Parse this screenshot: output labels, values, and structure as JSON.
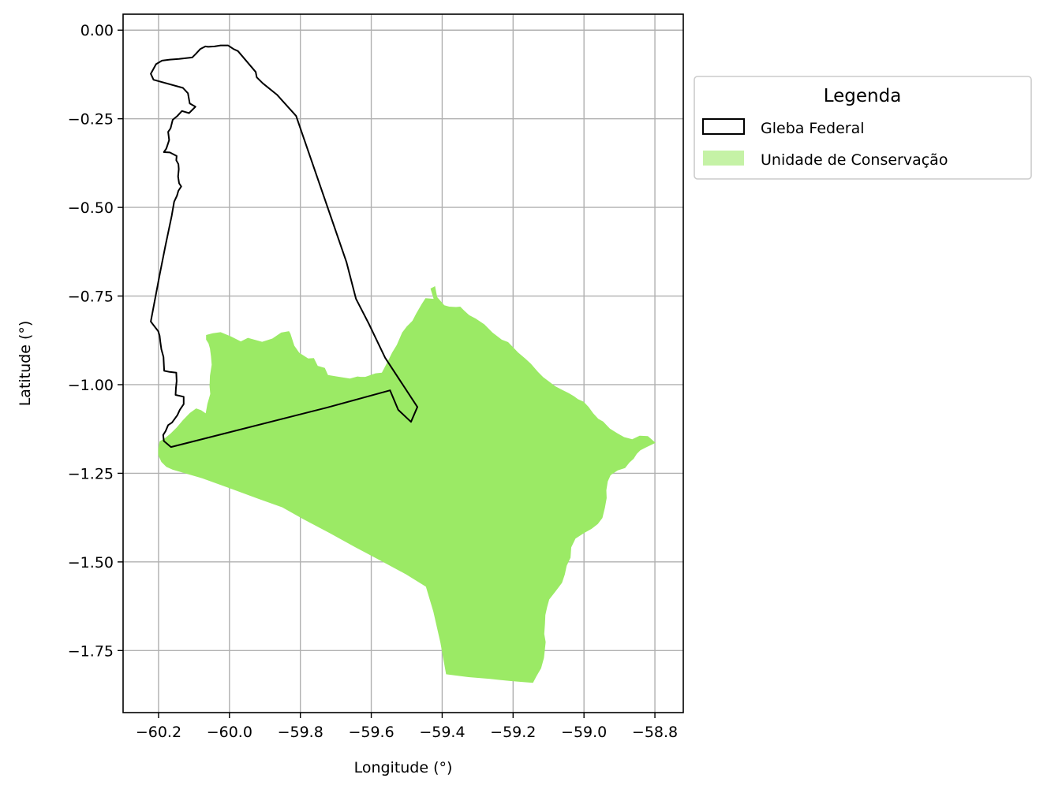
{
  "chart_data": {
    "type": "map",
    "xlabel": "Longitude (°)",
    "ylabel": "Latitude (°)",
    "xlim": [
      -60.3,
      -58.72
    ],
    "ylim": [
      -1.925,
      0.045
    ],
    "grid": true,
    "x_ticks": [
      -60.2,
      -60.0,
      -59.8,
      -59.6,
      -59.4,
      -59.2,
      -59.0,
      -58.8
    ],
    "x_tick_labels": [
      "−60.2",
      "−60.0",
      "−59.8",
      "−59.6",
      "−59.4",
      "−59.2",
      "−59.0",
      "−58.8"
    ],
    "y_ticks": [
      0.0,
      -0.25,
      -0.5,
      -0.75,
      -1.0,
      -1.25,
      -1.5,
      -1.75
    ],
    "y_tick_labels": [
      "0.00",
      "−0.25",
      "−0.50",
      "−0.75",
      "−1.00",
      "−1.25",
      "−1.50",
      "−1.75"
    ],
    "legend": {
      "title": "Legenda",
      "placement": "outside-right-top",
      "entries": [
        {
          "label": "Gleba Federal",
          "style": "outline",
          "color": "#000000"
        },
        {
          "label": "Unidade de Conservação",
          "style": "fill",
          "color": "#c5f2a6"
        }
      ]
    },
    "series": [
      {
        "name": "Gleba Federal",
        "style": "outline",
        "stroke": "#000000",
        "coordinates": [
          [
            -60.222,
            -0.123
          ],
          [
            -60.207,
            -0.096
          ],
          [
            -60.19,
            -0.086
          ],
          [
            -60.168,
            -0.083
          ],
          [
            -60.142,
            -0.081
          ],
          [
            -60.105,
            -0.077
          ],
          [
            -60.095,
            -0.067
          ],
          [
            -60.082,
            -0.053
          ],
          [
            -60.068,
            -0.046
          ],
          [
            -60.06,
            -0.047
          ],
          [
            -60.042,
            -0.046
          ],
          [
            -60.025,
            -0.043
          ],
          [
            -60.004,
            -0.043
          ],
          [
            -59.989,
            -0.053
          ],
          [
            -59.976,
            -0.059
          ],
          [
            -59.926,
            -0.118
          ],
          [
            -59.923,
            -0.133
          ],
          [
            -59.906,
            -0.15
          ],
          [
            -59.866,
            -0.182
          ],
          [
            -59.812,
            -0.242
          ],
          [
            -59.719,
            -0.512
          ],
          [
            -59.67,
            -0.654
          ],
          [
            -59.643,
            -0.758
          ],
          [
            -59.607,
            -0.828
          ],
          [
            -59.561,
            -0.924
          ],
          [
            -59.47,
            -1.063
          ],
          [
            -59.488,
            -1.105
          ],
          [
            -59.524,
            -1.071
          ],
          [
            -59.547,
            -1.016
          ],
          [
            -59.726,
            -1.065
          ],
          [
            -60.165,
            -1.176
          ],
          [
            -60.185,
            -1.159
          ],
          [
            -60.187,
            -1.142
          ],
          [
            -60.18,
            -1.131
          ],
          [
            -60.173,
            -1.114
          ],
          [
            -60.162,
            -1.107
          ],
          [
            -60.147,
            -1.086
          ],
          [
            -60.14,
            -1.071
          ],
          [
            -60.129,
            -1.055
          ],
          [
            -60.129,
            -1.034
          ],
          [
            -60.152,
            -1.029
          ],
          [
            -60.151,
            -1.009
          ],
          [
            -60.149,
            -0.99
          ],
          [
            -60.15,
            -0.966
          ],
          [
            -60.169,
            -0.964
          ],
          [
            -60.184,
            -0.961
          ],
          [
            -60.186,
            -0.922
          ],
          [
            -60.192,
            -0.9
          ],
          [
            -60.195,
            -0.879
          ],
          [
            -60.197,
            -0.862
          ],
          [
            -60.201,
            -0.849
          ],
          [
            -60.215,
            -0.831
          ],
          [
            -60.222,
            -0.822
          ],
          [
            -60.196,
            -0.686
          ],
          [
            -60.181,
            -0.61
          ],
          [
            -60.163,
            -0.524
          ],
          [
            -60.156,
            -0.484
          ],
          [
            -60.148,
            -0.467
          ],
          [
            -60.144,
            -0.453
          ],
          [
            -60.136,
            -0.441
          ],
          [
            -60.142,
            -0.432
          ],
          [
            -60.145,
            -0.413
          ],
          [
            -60.143,
            -0.392
          ],
          [
            -60.144,
            -0.378
          ],
          [
            -60.15,
            -0.367
          ],
          [
            -60.149,
            -0.355
          ],
          [
            -60.168,
            -0.345
          ],
          [
            -60.185,
            -0.344
          ],
          [
            -60.178,
            -0.334
          ],
          [
            -60.17,
            -0.31
          ],
          [
            -60.173,
            -0.287
          ],
          [
            -60.166,
            -0.277
          ],
          [
            -60.16,
            -0.253
          ],
          [
            -60.147,
            -0.242
          ],
          [
            -60.134,
            -0.228
          ],
          [
            -60.114,
            -0.234
          ],
          [
            -60.096,
            -0.216
          ],
          [
            -60.112,
            -0.207
          ],
          [
            -60.117,
            -0.178
          ],
          [
            -60.131,
            -0.163
          ],
          [
            -60.214,
            -0.14
          ],
          [
            -60.222,
            -0.123
          ]
        ]
      },
      {
        "name": "Unidade de Conservação",
        "style": "fill",
        "fill": "#9bea65",
        "coordinates": [
          [
            -60.066,
            -0.86
          ],
          [
            -60.047,
            -0.855
          ],
          [
            -60.025,
            -0.852
          ],
          [
            -59.996,
            -0.864
          ],
          [
            -59.968,
            -0.878
          ],
          [
            -59.948,
            -0.868
          ],
          [
            -59.908,
            -0.879
          ],
          [
            -59.879,
            -0.87
          ],
          [
            -59.854,
            -0.853
          ],
          [
            -59.832,
            -0.849
          ],
          [
            -59.828,
            -0.856
          ],
          [
            -59.817,
            -0.89
          ],
          [
            -59.803,
            -0.91
          ],
          [
            -59.778,
            -0.926
          ],
          [
            -59.762,
            -0.925
          ],
          [
            -59.751,
            -0.947
          ],
          [
            -59.731,
            -0.953
          ],
          [
            -59.722,
            -0.973
          ],
          [
            -59.697,
            -0.977
          ],
          [
            -59.66,
            -0.983
          ],
          [
            -59.639,
            -0.977
          ],
          [
            -59.63,
            -0.978
          ],
          [
            -59.617,
            -0.978
          ],
          [
            -59.588,
            -0.968
          ],
          [
            -59.57,
            -0.966
          ],
          [
            -59.555,
            -0.937
          ],
          [
            -59.541,
            -0.909
          ],
          [
            -59.528,
            -0.888
          ],
          [
            -59.513,
            -0.853
          ],
          [
            -59.5,
            -0.836
          ],
          [
            -59.484,
            -0.82
          ],
          [
            -59.473,
            -0.799
          ],
          [
            -59.458,
            -0.773
          ],
          [
            -59.447,
            -0.756
          ],
          [
            -59.424,
            -0.758
          ],
          [
            -59.433,
            -0.729
          ],
          [
            -59.42,
            -0.722
          ],
          [
            -59.414,
            -0.753
          ],
          [
            -59.394,
            -0.776
          ],
          [
            -59.38,
            -0.78
          ],
          [
            -59.361,
            -0.781
          ],
          [
            -59.349,
            -0.78
          ],
          [
            -59.338,
            -0.791
          ],
          [
            -59.324,
            -0.804
          ],
          [
            -59.305,
            -0.814
          ],
          [
            -59.281,
            -0.83
          ],
          [
            -59.258,
            -0.853
          ],
          [
            -59.232,
            -0.873
          ],
          [
            -59.214,
            -0.88
          ],
          [
            -59.186,
            -0.909
          ],
          [
            -59.166,
            -0.926
          ],
          [
            -59.15,
            -0.941
          ],
          [
            -59.13,
            -0.964
          ],
          [
            -59.115,
            -0.979
          ],
          [
            -59.099,
            -0.991
          ],
          [
            -59.082,
            -1.004
          ],
          [
            -59.061,
            -1.015
          ],
          [
            -59.043,
            -1.024
          ],
          [
            -59.028,
            -1.033
          ],
          [
            -59.017,
            -1.041
          ],
          [
            -59.001,
            -1.048
          ],
          [
            -58.987,
            -1.063
          ],
          [
            -58.974,
            -1.081
          ],
          [
            -58.96,
            -1.096
          ],
          [
            -58.946,
            -1.104
          ],
          [
            -58.927,
            -1.124
          ],
          [
            -58.906,
            -1.137
          ],
          [
            -58.887,
            -1.148
          ],
          [
            -58.864,
            -1.154
          ],
          [
            -58.843,
            -1.144
          ],
          [
            -58.82,
            -1.145
          ],
          [
            -58.798,
            -1.164
          ],
          [
            -58.823,
            -1.176
          ],
          [
            -58.841,
            -1.185
          ],
          [
            -58.851,
            -1.195
          ],
          [
            -58.86,
            -1.209
          ],
          [
            -58.872,
            -1.22
          ],
          [
            -58.884,
            -1.235
          ],
          [
            -58.905,
            -1.242
          ],
          [
            -58.925,
            -1.255
          ],
          [
            -58.933,
            -1.273
          ],
          [
            -58.937,
            -1.298
          ],
          [
            -58.936,
            -1.32
          ],
          [
            -58.941,
            -1.347
          ],
          [
            -58.948,
            -1.376
          ],
          [
            -58.961,
            -1.393
          ],
          [
            -58.979,
            -1.407
          ],
          [
            -58.999,
            -1.418
          ],
          [
            -59.024,
            -1.434
          ],
          [
            -59.036,
            -1.459
          ],
          [
            -59.038,
            -1.488
          ],
          [
            -59.049,
            -1.511
          ],
          [
            -59.054,
            -1.535
          ],
          [
            -59.062,
            -1.559
          ],
          [
            -59.081,
            -1.584
          ],
          [
            -59.098,
            -1.606
          ],
          [
            -59.104,
            -1.628
          ],
          [
            -59.109,
            -1.65
          ],
          [
            -59.11,
            -1.675
          ],
          [
            -59.112,
            -1.703
          ],
          [
            -59.108,
            -1.726
          ],
          [
            -59.11,
            -1.745
          ],
          [
            -59.113,
            -1.771
          ],
          [
            -59.121,
            -1.8
          ],
          [
            -59.134,
            -1.822
          ],
          [
            -59.144,
            -1.841
          ],
          [
            -59.206,
            -1.836
          ],
          [
            -59.265,
            -1.83
          ],
          [
            -59.326,
            -1.825
          ],
          [
            -59.389,
            -1.817
          ],
          [
            -59.405,
            -1.728
          ],
          [
            -59.425,
            -1.64
          ],
          [
            -59.446,
            -1.57
          ],
          [
            -59.502,
            -1.535
          ],
          [
            -59.574,
            -1.496
          ],
          [
            -59.646,
            -1.458
          ],
          [
            -59.717,
            -1.419
          ],
          [
            -59.789,
            -1.381
          ],
          [
            -59.851,
            -1.346
          ],
          [
            -59.921,
            -1.321
          ],
          [
            -60.0,
            -1.292
          ],
          [
            -60.077,
            -1.264
          ],
          [
            -60.16,
            -1.24
          ],
          [
            -60.178,
            -1.232
          ],
          [
            -60.192,
            -1.218
          ],
          [
            -60.201,
            -1.198
          ],
          [
            -60.201,
            -1.181
          ],
          [
            -60.197,
            -1.16
          ],
          [
            -60.183,
            -1.152
          ],
          [
            -60.166,
            -1.138
          ],
          [
            -60.149,
            -1.121
          ],
          [
            -60.132,
            -1.101
          ],
          [
            -60.112,
            -1.08
          ],
          [
            -60.094,
            -1.067
          ],
          [
            -60.08,
            -1.072
          ],
          [
            -60.067,
            -1.081
          ],
          [
            -60.062,
            -1.054
          ],
          [
            -60.054,
            -1.026
          ],
          [
            -60.056,
            -1.004
          ],
          [
            -60.055,
            -0.975
          ],
          [
            -60.05,
            -0.944
          ],
          [
            -60.052,
            -0.92
          ],
          [
            -60.055,
            -0.898
          ],
          [
            -60.059,
            -0.884
          ],
          [
            -60.066,
            -0.873
          ],
          [
            -60.066,
            -0.86
          ]
        ]
      }
    ]
  }
}
